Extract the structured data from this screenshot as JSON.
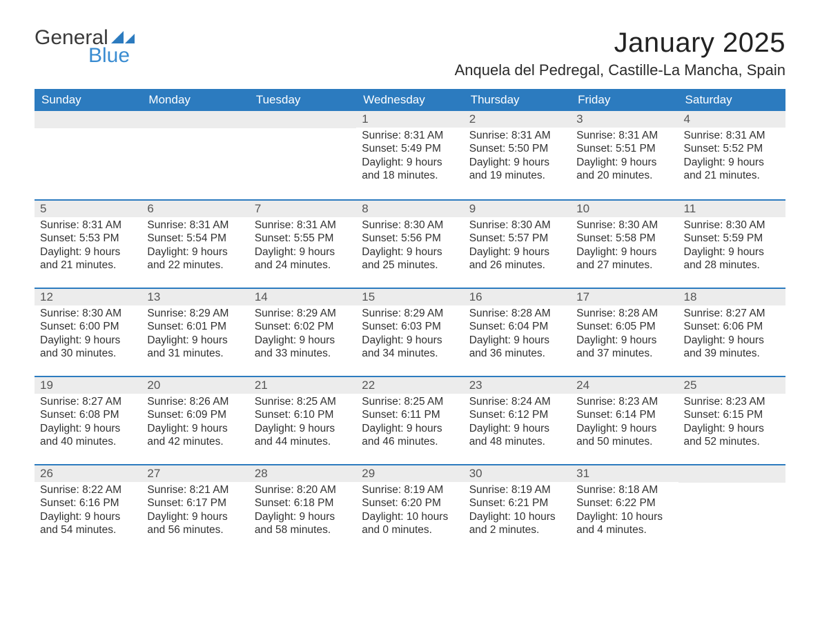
{
  "logo": {
    "line1": "General",
    "line2": "Blue",
    "accent_color": "#3a8cd1"
  },
  "title": "January 2025",
  "location": "Anquela del Pedregal, Castille-La Mancha, Spain",
  "colors": {
    "header_blue": "#2c7bbf",
    "daynum_bg": "#ececec",
    "row_separator": "#2c7bbf",
    "background": "#ffffff",
    "text": "#333333"
  },
  "typography": {
    "title_fontsize_pt": 30,
    "location_fontsize_pt": 17,
    "dow_fontsize_pt": 13,
    "cell_fontsize_pt": 12,
    "font_family": "Helvetica Neue / Arial"
  },
  "days_of_week": [
    "Sunday",
    "Monday",
    "Tuesday",
    "Wednesday",
    "Thursday",
    "Friday",
    "Saturday"
  ],
  "weeks": [
    [
      null,
      null,
      null,
      {
        "n": "1",
        "sunrise": "Sunrise: 8:31 AM",
        "sunset": "Sunset: 5:49 PM",
        "dl1": "Daylight: 9 hours",
        "dl2": "and 18 minutes."
      },
      {
        "n": "2",
        "sunrise": "Sunrise: 8:31 AM",
        "sunset": "Sunset: 5:50 PM",
        "dl1": "Daylight: 9 hours",
        "dl2": "and 19 minutes."
      },
      {
        "n": "3",
        "sunrise": "Sunrise: 8:31 AM",
        "sunset": "Sunset: 5:51 PM",
        "dl1": "Daylight: 9 hours",
        "dl2": "and 20 minutes."
      },
      {
        "n": "4",
        "sunrise": "Sunrise: 8:31 AM",
        "sunset": "Sunset: 5:52 PM",
        "dl1": "Daylight: 9 hours",
        "dl2": "and 21 minutes."
      }
    ],
    [
      {
        "n": "5",
        "sunrise": "Sunrise: 8:31 AM",
        "sunset": "Sunset: 5:53 PM",
        "dl1": "Daylight: 9 hours",
        "dl2": "and 21 minutes."
      },
      {
        "n": "6",
        "sunrise": "Sunrise: 8:31 AM",
        "sunset": "Sunset: 5:54 PM",
        "dl1": "Daylight: 9 hours",
        "dl2": "and 22 minutes."
      },
      {
        "n": "7",
        "sunrise": "Sunrise: 8:31 AM",
        "sunset": "Sunset: 5:55 PM",
        "dl1": "Daylight: 9 hours",
        "dl2": "and 24 minutes."
      },
      {
        "n": "8",
        "sunrise": "Sunrise: 8:30 AM",
        "sunset": "Sunset: 5:56 PM",
        "dl1": "Daylight: 9 hours",
        "dl2": "and 25 minutes."
      },
      {
        "n": "9",
        "sunrise": "Sunrise: 8:30 AM",
        "sunset": "Sunset: 5:57 PM",
        "dl1": "Daylight: 9 hours",
        "dl2": "and 26 minutes."
      },
      {
        "n": "10",
        "sunrise": "Sunrise: 8:30 AM",
        "sunset": "Sunset: 5:58 PM",
        "dl1": "Daylight: 9 hours",
        "dl2": "and 27 minutes."
      },
      {
        "n": "11",
        "sunrise": "Sunrise: 8:30 AM",
        "sunset": "Sunset: 5:59 PM",
        "dl1": "Daylight: 9 hours",
        "dl2": "and 28 minutes."
      }
    ],
    [
      {
        "n": "12",
        "sunrise": "Sunrise: 8:30 AM",
        "sunset": "Sunset: 6:00 PM",
        "dl1": "Daylight: 9 hours",
        "dl2": "and 30 minutes."
      },
      {
        "n": "13",
        "sunrise": "Sunrise: 8:29 AM",
        "sunset": "Sunset: 6:01 PM",
        "dl1": "Daylight: 9 hours",
        "dl2": "and 31 minutes."
      },
      {
        "n": "14",
        "sunrise": "Sunrise: 8:29 AM",
        "sunset": "Sunset: 6:02 PM",
        "dl1": "Daylight: 9 hours",
        "dl2": "and 33 minutes."
      },
      {
        "n": "15",
        "sunrise": "Sunrise: 8:29 AM",
        "sunset": "Sunset: 6:03 PM",
        "dl1": "Daylight: 9 hours",
        "dl2": "and 34 minutes."
      },
      {
        "n": "16",
        "sunrise": "Sunrise: 8:28 AM",
        "sunset": "Sunset: 6:04 PM",
        "dl1": "Daylight: 9 hours",
        "dl2": "and 36 minutes."
      },
      {
        "n": "17",
        "sunrise": "Sunrise: 8:28 AM",
        "sunset": "Sunset: 6:05 PM",
        "dl1": "Daylight: 9 hours",
        "dl2": "and 37 minutes."
      },
      {
        "n": "18",
        "sunrise": "Sunrise: 8:27 AM",
        "sunset": "Sunset: 6:06 PM",
        "dl1": "Daylight: 9 hours",
        "dl2": "and 39 minutes."
      }
    ],
    [
      {
        "n": "19",
        "sunrise": "Sunrise: 8:27 AM",
        "sunset": "Sunset: 6:08 PM",
        "dl1": "Daylight: 9 hours",
        "dl2": "and 40 minutes."
      },
      {
        "n": "20",
        "sunrise": "Sunrise: 8:26 AM",
        "sunset": "Sunset: 6:09 PM",
        "dl1": "Daylight: 9 hours",
        "dl2": "and 42 minutes."
      },
      {
        "n": "21",
        "sunrise": "Sunrise: 8:25 AM",
        "sunset": "Sunset: 6:10 PM",
        "dl1": "Daylight: 9 hours",
        "dl2": "and 44 minutes."
      },
      {
        "n": "22",
        "sunrise": "Sunrise: 8:25 AM",
        "sunset": "Sunset: 6:11 PM",
        "dl1": "Daylight: 9 hours",
        "dl2": "and 46 minutes."
      },
      {
        "n": "23",
        "sunrise": "Sunrise: 8:24 AM",
        "sunset": "Sunset: 6:12 PM",
        "dl1": "Daylight: 9 hours",
        "dl2": "and 48 minutes."
      },
      {
        "n": "24",
        "sunrise": "Sunrise: 8:23 AM",
        "sunset": "Sunset: 6:14 PM",
        "dl1": "Daylight: 9 hours",
        "dl2": "and 50 minutes."
      },
      {
        "n": "25",
        "sunrise": "Sunrise: 8:23 AM",
        "sunset": "Sunset: 6:15 PM",
        "dl1": "Daylight: 9 hours",
        "dl2": "and 52 minutes."
      }
    ],
    [
      {
        "n": "26",
        "sunrise": "Sunrise: 8:22 AM",
        "sunset": "Sunset: 6:16 PM",
        "dl1": "Daylight: 9 hours",
        "dl2": "and 54 minutes."
      },
      {
        "n": "27",
        "sunrise": "Sunrise: 8:21 AM",
        "sunset": "Sunset: 6:17 PM",
        "dl1": "Daylight: 9 hours",
        "dl2": "and 56 minutes."
      },
      {
        "n": "28",
        "sunrise": "Sunrise: 8:20 AM",
        "sunset": "Sunset: 6:18 PM",
        "dl1": "Daylight: 9 hours",
        "dl2": "and 58 minutes."
      },
      {
        "n": "29",
        "sunrise": "Sunrise: 8:19 AM",
        "sunset": "Sunset: 6:20 PM",
        "dl1": "Daylight: 10 hours",
        "dl2": "and 0 minutes."
      },
      {
        "n": "30",
        "sunrise": "Sunrise: 8:19 AM",
        "sunset": "Sunset: 6:21 PM",
        "dl1": "Daylight: 10 hours",
        "dl2": "and 2 minutes."
      },
      {
        "n": "31",
        "sunrise": "Sunrise: 8:18 AM",
        "sunset": "Sunset: 6:22 PM",
        "dl1": "Daylight: 10 hours",
        "dl2": "and 4 minutes."
      },
      null
    ]
  ]
}
